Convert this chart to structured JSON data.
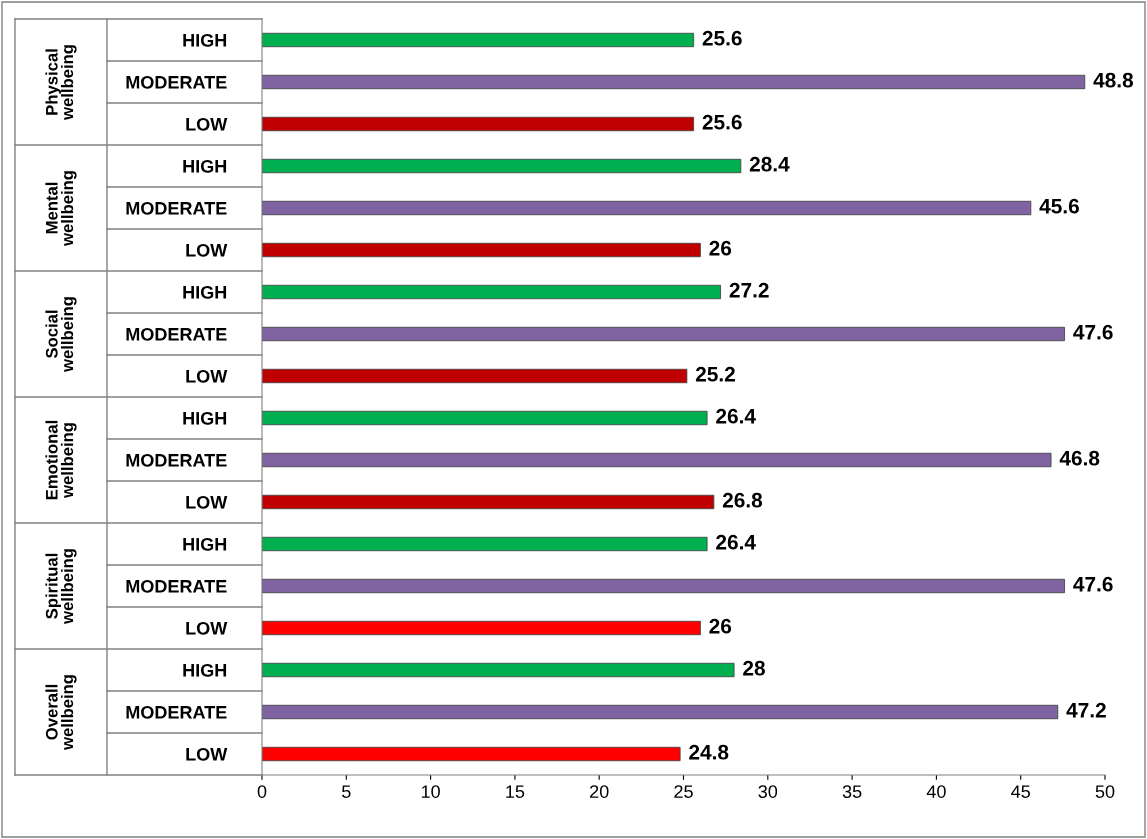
{
  "chart_data": {
    "type": "bar",
    "orientation": "horizontal",
    "categories": [
      "HIGH",
      "MODERATE",
      "LOW",
      "HIGH",
      "MODERATE",
      "LOW",
      "HIGH",
      "MODERATE",
      "LOW",
      "HIGH",
      "MODERATE",
      "LOW",
      "HIGH",
      "MODERATE",
      "LOW",
      "HIGH",
      "MODERATE",
      "LOW"
    ],
    "values": [
      25.6,
      48.8,
      25.6,
      28.4,
      45.6,
      26,
      27.2,
      47.6,
      25.2,
      26.4,
      46.8,
      26.8,
      26.4,
      47.6,
      26,
      28,
      47.2,
      24.8
    ],
    "colors": [
      "#00b050",
      "#8064a2",
      "#c00000",
      "#00b050",
      "#8064a2",
      "#c00000",
      "#00b050",
      "#8064a2",
      "#c00000",
      "#00b050",
      "#8064a2",
      "#c00000",
      "#00b050",
      "#8064a2",
      "#ff0000",
      "#00b050",
      "#8064a2",
      "#ff0000"
    ],
    "annotations": [
      "Physical wellbeing",
      "Mental wellbeing",
      "Social wellbeing",
      "Emotional wellbeing",
      "Spiritual wellbeing",
      "Overall wellbeing"
    ],
    "xlim": [
      0,
      50
    ],
    "xticks": [
      0,
      5,
      10,
      15,
      20,
      25,
      30,
      35,
      40,
      45,
      50
    ],
    "data_labels": true,
    "grid": false,
    "legend": false
  }
}
